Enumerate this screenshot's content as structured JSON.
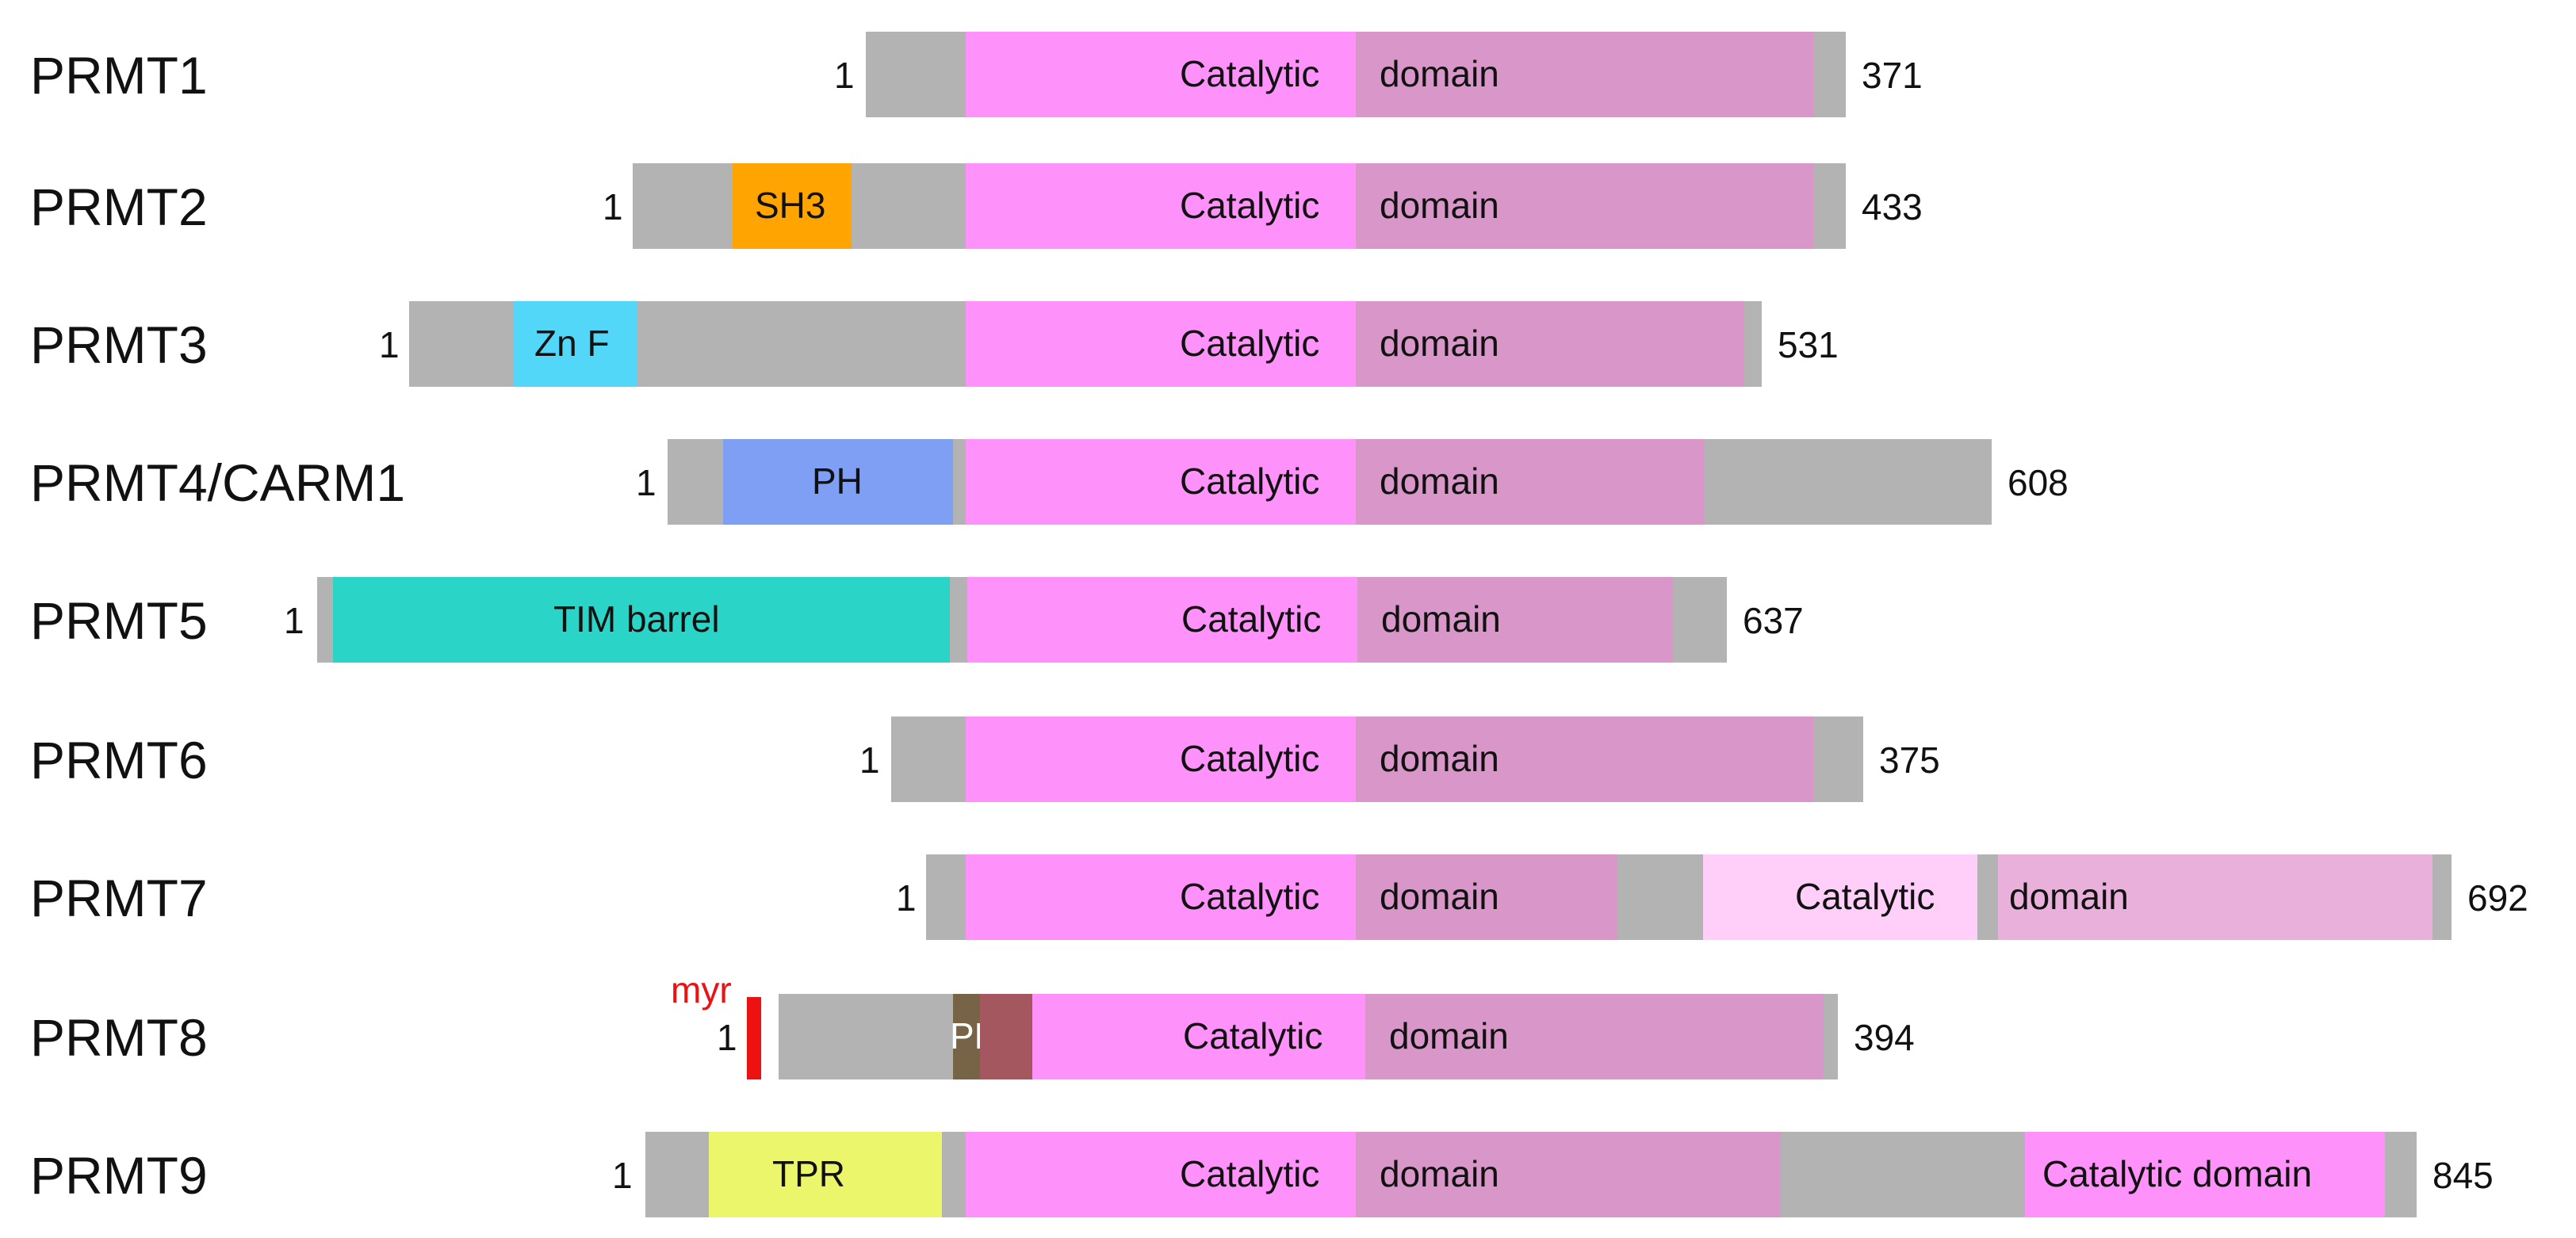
{
  "colors": {
    "linker": "#b3b3b3",
    "catalytic_pink": "#ff92fa",
    "domain_mauve": "#d996c8",
    "catalytic_light": "#ffcef9",
    "domain_light": "#e9b0db",
    "sh3": "#ffa400",
    "znf": "#52d7f8",
    "ph": "#7f9ff5",
    "tim": "#2ad5c7",
    "tpr": "#ecf66a",
    "pld_dark": "#776447",
    "pld_red": "#a4575e",
    "myr": "#ee1111"
  },
  "proteins": [
    {
      "name": "PRMT1",
      "start_label": "1",
      "end_label": "371",
      "segments": [
        {
          "type": "linker"
        },
        {
          "type": "catalytic",
          "label": "Catalytic"
        },
        {
          "type": "domain",
          "label": "domain"
        },
        {
          "type": "linker"
        }
      ]
    },
    {
      "name": "PRMT2",
      "start_label": "1",
      "end_label": "433",
      "segments": [
        {
          "type": "linker"
        },
        {
          "type": "sh3",
          "label": "SH3"
        },
        {
          "type": "linker"
        },
        {
          "type": "catalytic",
          "label": "Catalytic"
        },
        {
          "type": "domain",
          "label": "domain"
        },
        {
          "type": "linker"
        }
      ]
    },
    {
      "name": "PRMT3",
      "start_label": "1",
      "end_label": "531",
      "segments": [
        {
          "type": "linker"
        },
        {
          "type": "znf",
          "label": "Zn F"
        },
        {
          "type": "linker"
        },
        {
          "type": "catalytic",
          "label": "Catalytic"
        },
        {
          "type": "domain",
          "label": "domain"
        },
        {
          "type": "linker"
        }
      ]
    },
    {
      "name": "PRMT4/CARM1",
      "start_label": "1",
      "end_label": "608",
      "segments": [
        {
          "type": "linker"
        },
        {
          "type": "ph",
          "label": "PH"
        },
        {
          "type": "linker"
        },
        {
          "type": "catalytic",
          "label": "Catalytic"
        },
        {
          "type": "domain",
          "label": "domain"
        },
        {
          "type": "linker"
        }
      ]
    },
    {
      "name": "PRMT5",
      "start_label": "1",
      "end_label": "637",
      "segments": [
        {
          "type": "linker"
        },
        {
          "type": "tim",
          "label": "TIM barrel"
        },
        {
          "type": "linker"
        },
        {
          "type": "catalytic",
          "label": "Catalytic"
        },
        {
          "type": "domain",
          "label": "domain"
        },
        {
          "type": "linker"
        }
      ]
    },
    {
      "name": "PRMT6",
      "start_label": "1",
      "end_label": "375",
      "segments": [
        {
          "type": "linker"
        },
        {
          "type": "catalytic",
          "label": "Catalytic"
        },
        {
          "type": "domain",
          "label": "domain"
        },
        {
          "type": "linker"
        }
      ]
    },
    {
      "name": "PRMT7",
      "start_label": "1",
      "end_label": "692",
      "segments": [
        {
          "type": "linker"
        },
        {
          "type": "catalytic",
          "label": "Catalytic"
        },
        {
          "type": "domain",
          "label": "domain"
        },
        {
          "type": "linker"
        },
        {
          "type": "catalytic_light",
          "label": "Catalytic"
        },
        {
          "type": "linker"
        },
        {
          "type": "domain_light",
          "label": "domain"
        },
        {
          "type": "linker"
        }
      ]
    },
    {
      "name": "PRMT8",
      "start_label": "1",
      "end_label": "394",
      "myr_label": "myr",
      "segments": [
        {
          "type": "myr"
        },
        {
          "type": "gap"
        },
        {
          "type": "linker"
        },
        {
          "type": "pld_dark",
          "label": "PLD"
        },
        {
          "type": "pld_red"
        },
        {
          "type": "catalytic",
          "label": "Catalytic"
        },
        {
          "type": "domain",
          "label": "domain"
        },
        {
          "type": "linker"
        }
      ]
    },
    {
      "name": "PRMT9",
      "start_label": "1",
      "end_label": "845",
      "segments": [
        {
          "type": "linker"
        },
        {
          "type": "tpr",
          "label": "TPR"
        },
        {
          "type": "linker"
        },
        {
          "type": "catalytic",
          "label": "Catalytic"
        },
        {
          "type": "domain",
          "label": "domain"
        },
        {
          "type": "linker"
        },
        {
          "type": "catalytic",
          "label": "Catalytic  domain"
        },
        {
          "type": "linker"
        }
      ]
    }
  ]
}
